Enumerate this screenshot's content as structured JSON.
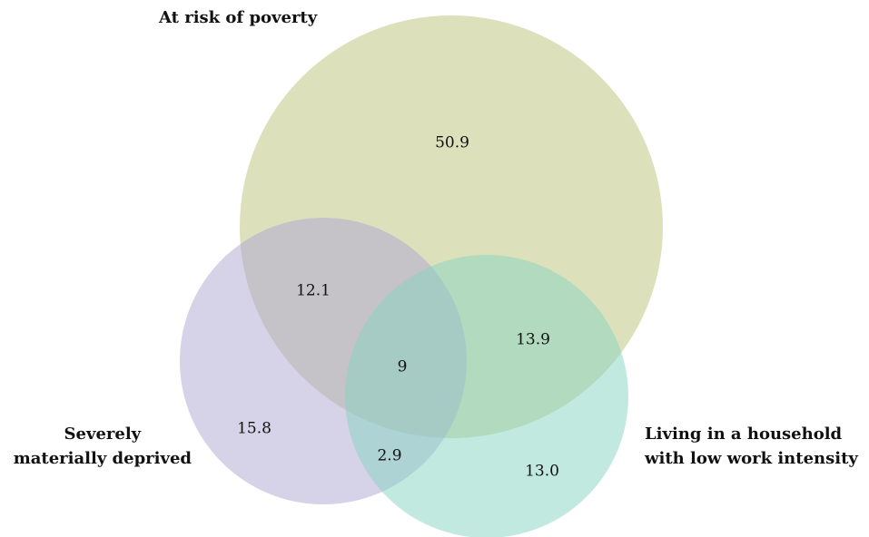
{
  "chart_data": {
    "type": "venn",
    "sets": [
      {
        "name": "At risk of poverty",
        "color": "#b9c47a"
      },
      {
        "name": "Severely\nmaterially deprived",
        "color": "#aea6d2"
      },
      {
        "name": "Living in a household\nwith low work intensity",
        "color": "#86d4c2"
      }
    ],
    "values": [
      50.9,
      15.8,
      13.0,
      12.1,
      13.9,
      2.9,
      9
    ],
    "value_labels": [
      "50.9",
      "15.8",
      "13.0",
      "12.1",
      "13.9",
      "2.9",
      "9"
    ]
  }
}
